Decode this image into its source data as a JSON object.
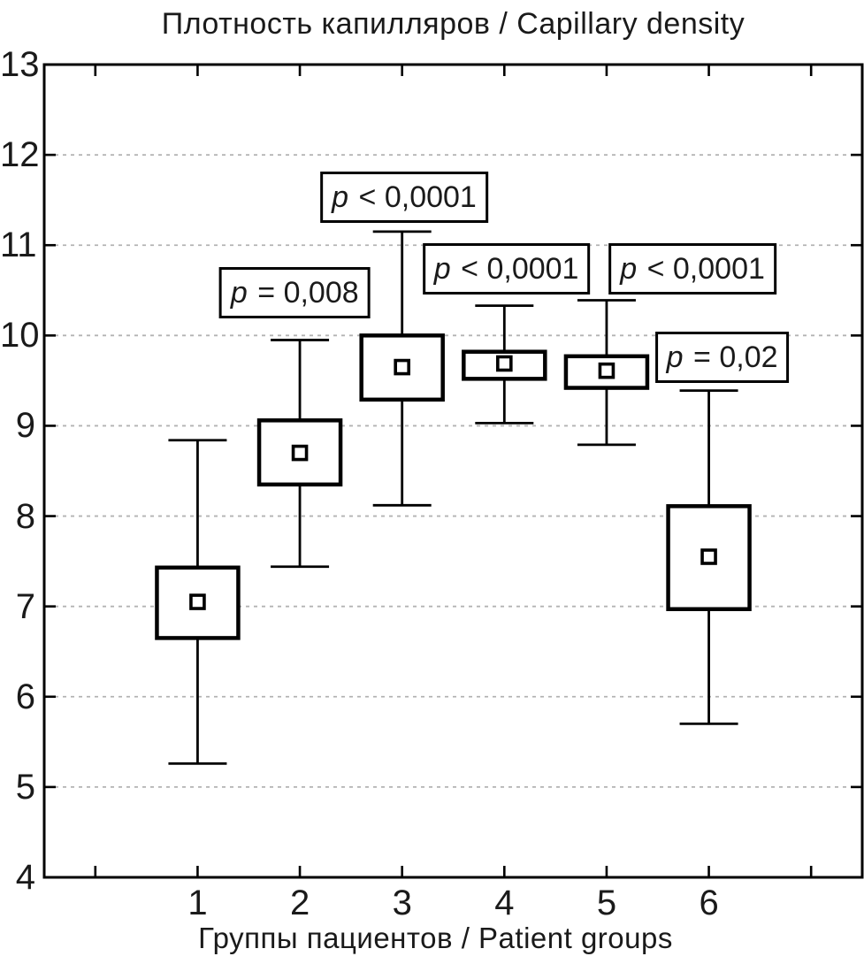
{
  "colors": {
    "ink": "#000000",
    "text": "#1a1a1a",
    "grid": "#b3b3b3",
    "background": "#ffffff"
  },
  "chart_data": {
    "type": "box",
    "title": "Плотность капилляров / Capillary density",
    "xlabel": "Группы пациентов / Patient groups",
    "ylabel": "",
    "ylim": [
      4,
      13
    ],
    "yticks": [
      4,
      5,
      6,
      7,
      8,
      9,
      10,
      11,
      12,
      13
    ],
    "grid": "horizontal dashed gray lines at each integer",
    "legend": "none",
    "categories": [
      "1",
      "2",
      "3",
      "4",
      "5",
      "6"
    ],
    "boxes": [
      {
        "group": "1",
        "mean": 7.05,
        "box_low": 6.65,
        "box_high": 7.43,
        "whisker_low": 5.26,
        "whisker_high": 8.84
      },
      {
        "group": "2",
        "mean": 8.7,
        "box_low": 8.35,
        "box_high": 9.06,
        "whisker_low": 7.44,
        "whisker_high": 9.95
      },
      {
        "group": "3",
        "mean": 9.65,
        "box_low": 9.29,
        "box_high": 10.0,
        "whisker_low": 8.12,
        "whisker_high": 11.15
      },
      {
        "group": "4",
        "mean": 9.69,
        "box_low": 9.52,
        "box_high": 9.82,
        "whisker_low": 9.03,
        "whisker_high": 10.33
      },
      {
        "group": "5",
        "mean": 9.61,
        "box_low": 9.42,
        "box_high": 9.77,
        "whisker_low": 8.79,
        "whisker_high": 10.39
      },
      {
        "group": "6",
        "mean": 7.55,
        "box_low": 6.97,
        "box_high": 8.11,
        "whisker_low": 5.7,
        "whisker_high": 9.39
      }
    ],
    "annotations": [
      {
        "text": "p = 0,008",
        "x_group": 1.95,
        "y_value": 10.47
      },
      {
        "text": "p < 0,0001",
        "x_group": 3.02,
        "y_value": 11.53
      },
      {
        "text": "p < 0,0001",
        "x_group": 4.02,
        "y_value": 10.74
      },
      {
        "text": "p < 0,0001",
        "x_group": 5.84,
        "y_value": 10.74
      },
      {
        "text": "p = 0,02",
        "x_group": 6.13,
        "y_value": 9.76
      }
    ]
  }
}
